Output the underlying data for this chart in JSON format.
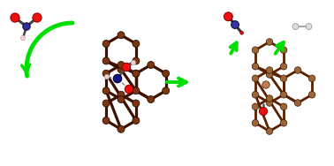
{
  "bg_color": "#ffffff",
  "carbon_dark_color": "#7B3510",
  "carbon_dark_edge": "#2a0e00",
  "carbon_light_color": "#9B6030",
  "carbon_light_edge": "#3d1a00",
  "nitrogen_color": "#1a1a90",
  "oxygen_red": "#ee1010",
  "hydrogen_color": "#f0c0c0",
  "co2_center_color": "#4040a0",
  "arrow_green": "#00dd00",
  "bond_dark": "#3d1000",
  "bond_light": "#5a2800",
  "blw": 2.0,
  "nr": 0.038,
  "xlim": [
    0,
    3.78
  ],
  "ylim": [
    0,
    1.88
  ]
}
